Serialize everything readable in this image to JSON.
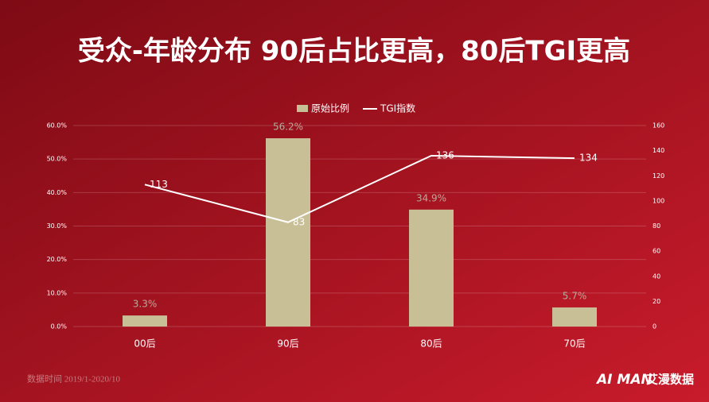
{
  "chart_data": {
    "type": "bar_line",
    "title": "受众-年龄分布 90后占比更高，80后TGI更高",
    "categories": [
      "00后",
      "90后",
      "80后",
      "70后"
    ],
    "series": [
      {
        "name": "原始比例",
        "type": "bar",
        "color": "#c8bf97",
        "values": [
          3.3,
          56.2,
          34.9,
          5.7
        ],
        "value_labels": [
          "3.3%",
          "56.2%",
          "34.9%",
          "5.7%"
        ]
      },
      {
        "name": "TGI指数",
        "type": "line",
        "axis": "y2",
        "color": "#ffffff",
        "values": [
          113,
          83,
          136,
          134
        ]
      }
    ],
    "ylim": [
      0,
      60
    ],
    "yticks": [
      {
        "value": 0,
        "label": "0.0%"
      },
      {
        "value": 10,
        "label": "10.0%"
      },
      {
        "value": 20,
        "label": "20.0%"
      },
      {
        "value": 30,
        "label": "30.0%"
      },
      {
        "value": 40,
        "label": "40.0%"
      },
      {
        "value": 50,
        "label": "50.0%"
      },
      {
        "value": 60,
        "label": "60.0%"
      }
    ],
    "y2lim": [
      0,
      160
    ],
    "y2ticks": [
      0,
      20,
      40,
      60,
      80,
      100,
      120,
      140,
      160
    ],
    "grid": true,
    "legend": "top",
    "footnote": "数据时间 2019/1-2020/10",
    "logo_en": "AI MAN",
    "logo_cn": "艾漫数据"
  }
}
